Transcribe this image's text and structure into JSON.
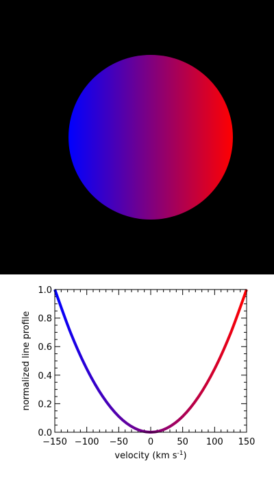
{
  "colors": {
    "background_top": "#000000",
    "background_bottom": "#ffffff",
    "blue": "#0000ff",
    "red": "#ff0000",
    "axis": "#000000"
  },
  "chart_data": [
    {
      "type": "image",
      "description_role": "rotating stellar disk colored by line-of-sight velocity",
      "color_left": "#0000ff",
      "color_right": "#ff0000"
    },
    {
      "type": "line",
      "title": "",
      "xlabel": "velocity (km s",
      "xlabel_sup": "-1",
      "xlabel_close": ")",
      "ylabel": "normalized line profile",
      "xlim": [
        -150,
        150
      ],
      "ylim": [
        0,
        1.0
      ],
      "x_ticks": [
        -150,
        -100,
        -50,
        0,
        50,
        100,
        150
      ],
      "x_tick_labels": [
        "−150",
        "−100",
        "−50",
        "0",
        "50",
        "100",
        "150"
      ],
      "y_ticks": [
        0.0,
        0.2,
        0.4,
        0.6,
        0.8,
        1.0
      ],
      "y_tick_labels": [
        "0.0",
        "0.2",
        "0.4",
        "0.6",
        "0.8",
        "1.0"
      ],
      "grid": false,
      "series": [
        {
          "x": [
            -150,
            -125,
            -100,
            -75,
            -50,
            -25,
            0,
            25,
            50,
            75,
            100,
            125,
            150
          ],
          "values": [
            1.0,
            0.694,
            0.444,
            0.25,
            0.111,
            0.028,
            0.0,
            0.028,
            0.111,
            0.25,
            0.444,
            0.694,
            1.0
          ]
        }
      ]
    }
  ]
}
